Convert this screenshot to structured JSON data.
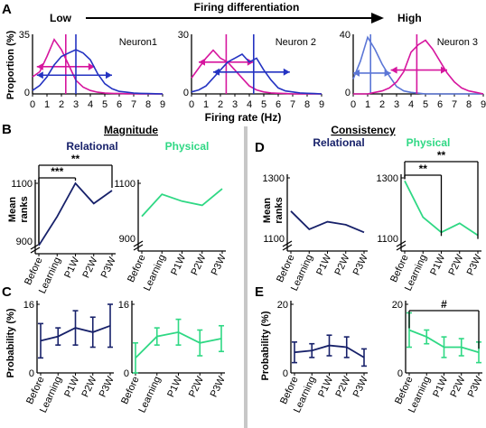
{
  "colors": {
    "magenta": "#d6169e",
    "blue": "#2433c2",
    "lightblue": "#5b76d6",
    "navy": "#17216a",
    "green": "#2fd884",
    "divider": "#c7c7c7"
  },
  "panel_letters": {
    "A": "A",
    "B": "B",
    "C": "C",
    "D": "D",
    "E": "E"
  },
  "section_titles": {
    "magnitude": "Magnitude",
    "consistency": "Consistency"
  },
  "firing_header": {
    "low": "Low",
    "middle": "Firing differentiation",
    "high": "High"
  },
  "group_labels": {
    "relational": "Relational",
    "physical": "Physical"
  },
  "ylabels": {
    "proportion": "Proportion (%)",
    "mean_ranks_1": "Mean",
    "mean_ranks_2": "ranks",
    "probability": "Probability (%)"
  },
  "xlabel_rate": "Firing rate (Hz)",
  "chart_data": [
    {
      "id": "neuron1",
      "type": "line",
      "title": "Neuron1",
      "xlabel": "Firing rate (Hz)",
      "ylabel": "Proportion (%)",
      "xlim": [
        0,
        9
      ],
      "ylim": [
        0,
        35
      ],
      "x": [
        0,
        0.5,
        1,
        1.5,
        2,
        2.5,
        3,
        3.5,
        4,
        4.5,
        5,
        5.5,
        6,
        6.5,
        7,
        7.5,
        8,
        8.5,
        9
      ],
      "series": [
        {
          "name": "magenta",
          "values": [
            10,
            13,
            22,
            32,
            26,
            17,
            8,
            4,
            2,
            1,
            0.5,
            0.3,
            0.2,
            0.1,
            0.1,
            0,
            0,
            0,
            0
          ]
        },
        {
          "name": "blue",
          "values": [
            2,
            5,
            10,
            17,
            22,
            24,
            26,
            24,
            20,
            12,
            6,
            3,
            1.5,
            1,
            0.5,
            0.3,
            0.2,
            0.1,
            0
          ]
        }
      ],
      "markers": {
        "magenta_mean": 2.3,
        "blue_mean": 3.0,
        "magenta_range": [
          0.3,
          4.3
        ],
        "blue_range": [
          0.3,
          5.5
        ]
      }
    },
    {
      "id": "neuron2",
      "type": "line",
      "title": "Neuron 2",
      "xlabel": "Firing rate (Hz)",
      "ylabel": "Proportion (%)",
      "xlim": [
        0,
        9
      ],
      "ylim": [
        0,
        30
      ],
      "x": [
        0,
        0.5,
        1,
        1.5,
        2,
        2.5,
        3,
        3.5,
        4,
        4.5,
        5,
        5.5,
        6,
        6.5,
        7,
        7.5,
        8,
        8.5,
        9
      ],
      "series": [
        {
          "name": "magenta",
          "values": [
            8,
            13,
            18,
            22,
            18,
            16,
            12,
            8,
            4,
            2,
            1,
            0.5,
            0.3,
            0.2,
            0,
            0,
            0,
            0,
            0
          ]
        },
        {
          "name": "blue",
          "values": [
            1,
            2,
            4,
            8,
            12,
            16,
            18,
            20,
            16,
            18,
            12,
            7,
            3,
            1.5,
            1,
            0.5,
            0.3,
            0.2,
            0
          ]
        }
      ],
      "markers": {
        "magenta_mean": 2.4,
        "blue_mean": 4.3,
        "magenta_range": [
          0.5,
          4.3
        ],
        "blue_range": [
          1.5,
          6.8
        ]
      }
    },
    {
      "id": "neuron3",
      "type": "line",
      "title": "Neuron 3",
      "xlabel": "Firing rate (Hz)",
      "ylabel": "Proportion (%)",
      "xlim": [
        0,
        9
      ],
      "ylim": [
        0,
        40
      ],
      "x": [
        0,
        0.5,
        1,
        1.5,
        2,
        2.5,
        3,
        3.5,
        4,
        4.5,
        5,
        5.5,
        6,
        6.5,
        7,
        7.5,
        8,
        8.5,
        9
      ],
      "series": [
        {
          "name": "lightblue",
          "values": [
            10,
            22,
            38,
            30,
            20,
            12,
            5,
            2,
            1,
            0.5,
            0,
            0,
            0,
            0,
            0,
            0,
            0,
            0,
            0
          ]
        },
        {
          "name": "magenta",
          "values": [
            0,
            0,
            0,
            1,
            2,
            4,
            8,
            15,
            28,
            33,
            36,
            30,
            22,
            14,
            8,
            4,
            2,
            1,
            0
          ]
        }
      ],
      "markers": {
        "lightblue_mean": 1.2,
        "magenta_mean": 4.4,
        "lightblue_range": [
          0,
          2.6
        ],
        "magenta_range": [
          2.6,
          6.5
        ]
      }
    },
    {
      "id": "B_relational",
      "type": "line",
      "title": "Relational",
      "ylabel": "Mean ranks",
      "ylim": [
        900,
        1100
      ],
      "categories": [
        "Before",
        "Learning",
        "P1W",
        "P2W",
        "P3W"
      ],
      "values": [
        885,
        985,
        1100,
        1030,
        1075
      ],
      "significance": [
        {
          "from": "Before",
          "to": "P1W",
          "label": "***"
        },
        {
          "from": "Before",
          "to": "P3W",
          "label": "**"
        }
      ]
    },
    {
      "id": "B_physical",
      "type": "line",
      "title": "Physical",
      "ylabel": "Mean ranks",
      "ylim": [
        900,
        1100
      ],
      "categories": [
        "Before",
        "Learning",
        "P1W",
        "P2W",
        "P3W"
      ],
      "values": [
        980,
        1060,
        1035,
        1020,
        1080
      ]
    },
    {
      "id": "C_relational",
      "type": "line",
      "ylabel": "Probability (%)",
      "ylim": [
        0,
        16
      ],
      "categories": [
        "Before",
        "Learning",
        "P1W",
        "P2W",
        "P3W"
      ],
      "values": [
        7.5,
        8.5,
        10.5,
        9.5,
        11
      ],
      "errors": [
        4,
        2,
        4,
        3.5,
        5
      ]
    },
    {
      "id": "C_physical",
      "type": "line",
      "ylabel": "Probability (%)",
      "ylim": [
        0,
        16
      ],
      "categories": [
        "Before",
        "Learning",
        "P1W",
        "P2W",
        "P3W"
      ],
      "values": [
        3.5,
        8.5,
        9.5,
        7,
        8
      ],
      "errors": [
        3.5,
        2,
        3,
        3,
        3
      ]
    },
    {
      "id": "D_relational",
      "type": "line",
      "title": "Relational",
      "ylabel": "Mean ranks",
      "ylim": [
        1100,
        1300
      ],
      "categories": [
        "Before",
        "Learning",
        "P1W",
        "P2W",
        "P3W"
      ],
      "values": [
        1190,
        1130,
        1155,
        1145,
        1120
      ]
    },
    {
      "id": "D_physical",
      "type": "line",
      "title": "Physical",
      "ylabel": "Mean ranks",
      "ylim": [
        1100,
        1300
      ],
      "categories": [
        "Before",
        "Learning",
        "P1W",
        "P2W",
        "P3W"
      ],
      "values": [
        1290,
        1170,
        1120,
        1150,
        1110
      ],
      "significance": [
        {
          "from": "Before",
          "to": "P1W",
          "label": "**"
        },
        {
          "from": "Before",
          "to": "P3W",
          "label": "**"
        }
      ]
    },
    {
      "id": "E_relational",
      "type": "line",
      "ylabel": "Probability (%)",
      "ylim": [
        0,
        20
      ],
      "categories": [
        "Before",
        "Learning",
        "P1W",
        "P2W",
        "P3W"
      ],
      "values": [
        6,
        6.5,
        8,
        7.5,
        4.5
      ],
      "errors": [
        3,
        2,
        3,
        3,
        2.5
      ]
    },
    {
      "id": "E_physical",
      "type": "line",
      "ylabel": "Probability (%)",
      "ylim": [
        0,
        20
      ],
      "categories": [
        "Before",
        "Learning",
        "P1W",
        "P2W",
        "P3W"
      ],
      "values": [
        12.5,
        10.5,
        7.5,
        7.5,
        6
      ],
      "errors": [
        5,
        2,
        3,
        2.5,
        3
      ],
      "significance": [
        {
          "from": "Before",
          "to": "P3W",
          "label": "#"
        }
      ]
    }
  ]
}
